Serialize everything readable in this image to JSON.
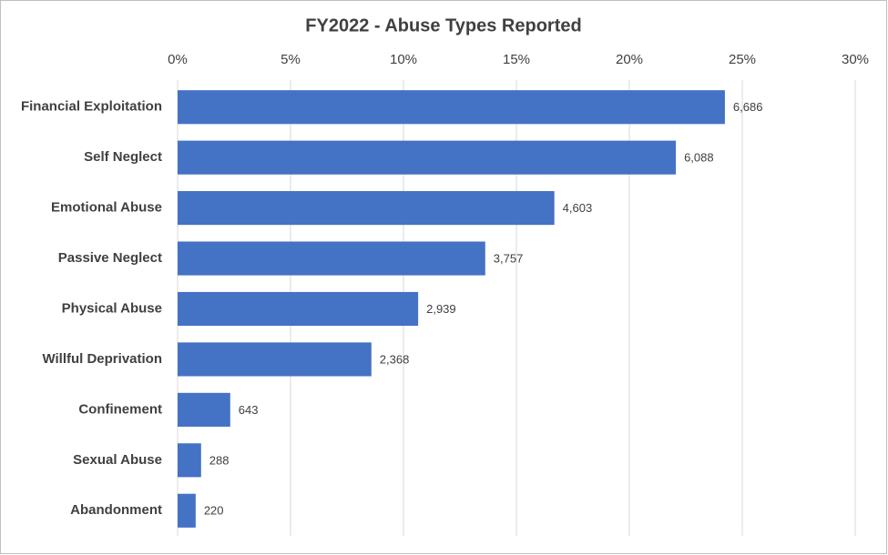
{
  "chart_data": {
    "type": "hbar",
    "title": "FY2022 - Abuse Types Reported",
    "categories": [
      "Financial Exploitation",
      "Self Neglect",
      "Emotional Abuse",
      "Passive Neglect",
      "Physical Abuse",
      "Willful Deprivation",
      "Confinement",
      "Sexual Abuse",
      "Abandonment"
    ],
    "values": [
      24.23,
      22.06,
      16.68,
      13.62,
      10.65,
      8.58,
      2.33,
      1.04,
      0.8
    ],
    "counts": [
      {
        "value": 6686,
        "label": "6,686"
      },
      {
        "value": 6088,
        "label": "6,088"
      },
      {
        "value": 4603,
        "label": "4,603"
      },
      {
        "value": 3757,
        "label": "3,757"
      },
      {
        "value": 2939,
        "label": "2,939"
      },
      {
        "value": 2368,
        "label": "2,368"
      },
      {
        "value": 643,
        "label": "643"
      },
      {
        "value": 288,
        "label": "288"
      },
      {
        "value": 220,
        "label": "220"
      }
    ],
    "color": "#4472c4",
    "xlim": [
      0,
      30
    ],
    "xticks": [
      {
        "value": 0,
        "label": "0%"
      },
      {
        "value": 5,
        "label": "5%"
      },
      {
        "value": 10,
        "label": "10%"
      },
      {
        "value": 15,
        "label": "15%"
      },
      {
        "value": 20,
        "label": "20%"
      },
      {
        "value": 25,
        "label": "25%"
      },
      {
        "value": 30,
        "label": "30%"
      }
    ],
    "grid": true
  }
}
